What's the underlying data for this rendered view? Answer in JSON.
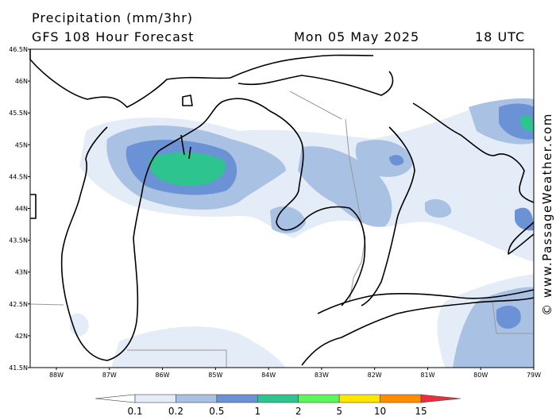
{
  "header": {
    "title": "Precipitation (mm/3hr)",
    "model": "GFS 108 Hour Forecast",
    "date": "Mon 05 May 2025",
    "time": "18 UTC"
  },
  "latitudes": [
    "46.5N",
    "46N",
    "45.5N",
    "45N",
    "44.5N",
    "44N",
    "43.5N",
    "43N",
    "42.5N",
    "42N",
    "41.5N"
  ],
  "longitudes": [
    "88W",
    "87W",
    "86W",
    "85W",
    "84W",
    "83W",
    "82W",
    "81W",
    "80W",
    "79W"
  ],
  "legend": {
    "labels": [
      "0.1",
      "0.2",
      "0.5",
      "1",
      "2",
      "5",
      "10",
      "15"
    ],
    "colors": [
      "#ffffff",
      "#e4ecf8",
      "#a9c1e2",
      "#6b92d4",
      "#2ec48f",
      "#5cf55c",
      "#ffe600",
      "#ff8c00",
      "#e8303c"
    ]
  },
  "watermark": "© www.PassageWeather.com"
}
